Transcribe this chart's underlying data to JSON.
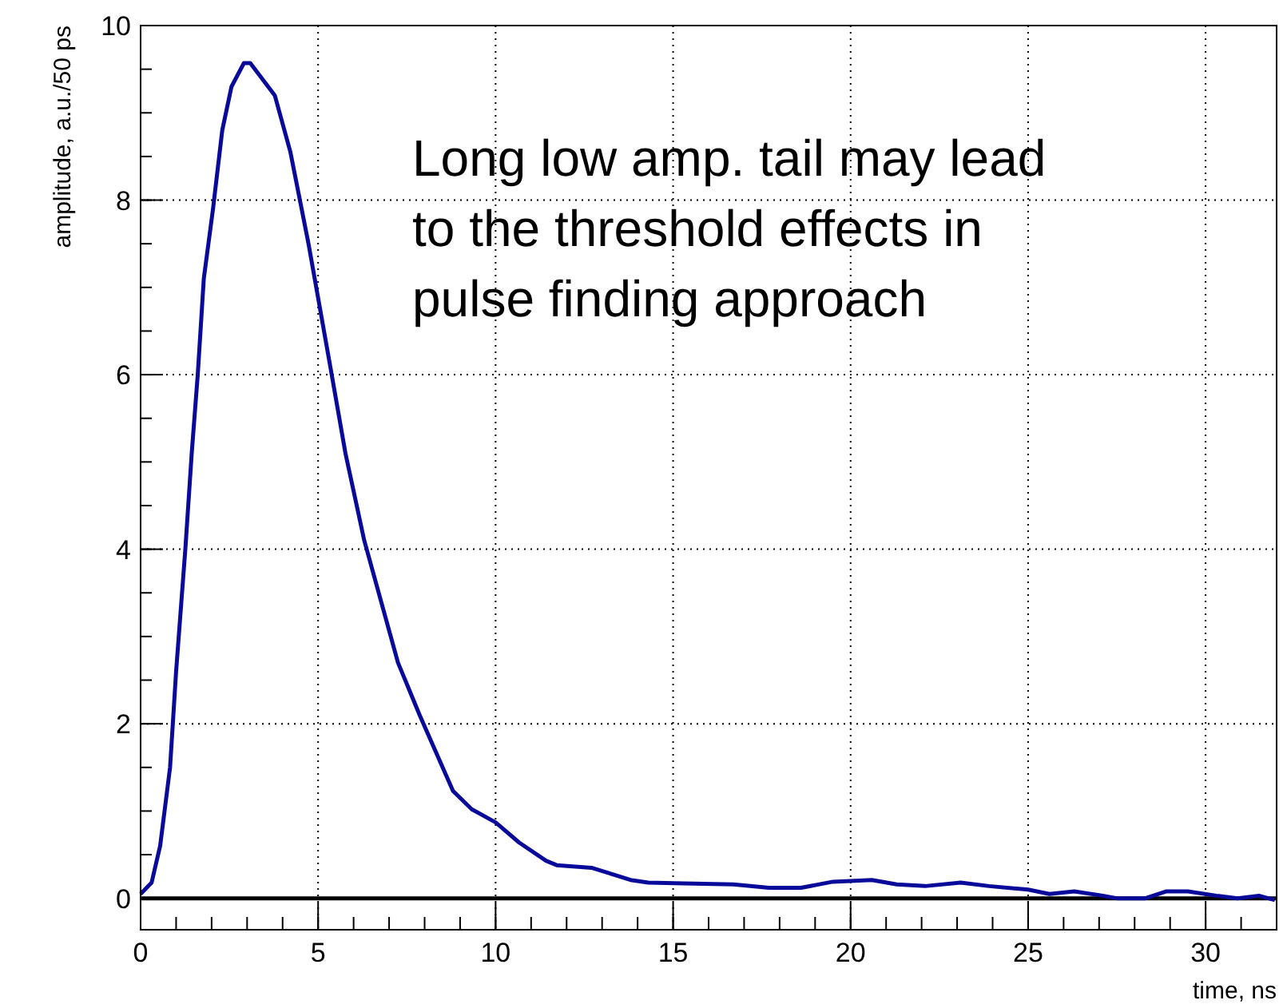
{
  "chart_data": {
    "type": "line",
    "xlabel": "time, ns",
    "ylabel": "amplitude, a.u./50 ps",
    "annotations": [
      "Long low amp. tail may lead\nto the threshold effects in\npulse finding approach"
    ],
    "x": [
      0,
      0.31,
      0.55,
      0.83,
      1.0,
      1.26,
      1.44,
      1.61,
      1.78,
      2.04,
      2.3,
      2.56,
      2.91,
      3.09,
      3.78,
      4.22,
      4.73,
      5.34,
      5.77,
      6.3,
      7.25,
      7.86,
      8.8,
      9.33,
      10.0,
      10.66,
      11.42,
      11.72,
      12.7,
      13.1,
      13.8,
      14.3,
      15.3,
      16.7,
      17.7,
      18.6,
      19.5,
      20.6,
      21.3,
      22.1,
      23.1,
      23.9,
      25.0,
      25.6,
      26.3,
      27.1,
      27.5,
      28.3,
      28.9,
      29.5,
      30.3,
      30.9,
      31.5,
      31.95
    ],
    "series": [
      {
        "color": "#0a0a9a",
        "values": [
          0.05,
          0.18,
          0.6,
          1.5,
          2.6,
          4.0,
          5.1,
          6.0,
          7.1,
          7.9,
          8.8,
          9.3,
          9.57,
          9.57,
          9.2,
          8.55,
          7.5,
          6.1,
          5.1,
          4.1,
          2.7,
          2.1,
          1.23,
          1.02,
          0.87,
          0.64,
          0.43,
          0.38,
          0.35,
          0.3,
          0.21,
          0.18,
          0.17,
          0.16,
          0.12,
          0.12,
          0.19,
          0.21,
          0.16,
          0.14,
          0.18,
          0.14,
          0.1,
          0.05,
          0.08,
          0.03,
          0.0,
          0.0,
          0.08,
          0.08,
          0.03,
          0.0,
          0.03,
          -0.02
        ]
      }
    ],
    "xlim": [
      0,
      32
    ],
    "ylim": [
      -0.36,
      10
    ],
    "xticks": [
      0,
      5,
      10,
      15,
      20,
      25,
      30
    ],
    "yticks": [
      0,
      2,
      4,
      6,
      8,
      10
    ],
    "ref_lines": [
      {
        "axis": "y",
        "value": 0,
        "color": "#000000"
      }
    ],
    "grid": true,
    "marker": "none",
    "line_style": "solid"
  }
}
